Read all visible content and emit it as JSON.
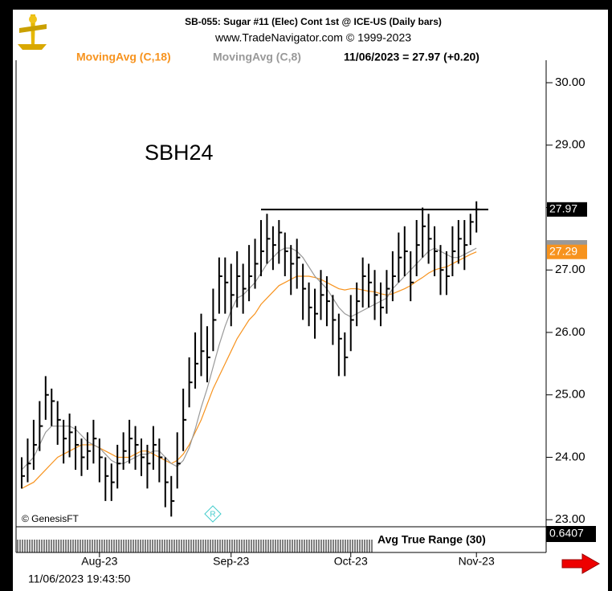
{
  "chart_data": {
    "type": "hlc",
    "title": "SB-055:  Sugar #11 (Elec) Cont 1st @ ICE-US  (Daily bars)",
    "subtitle": "www.TradeNavigator.com © 1999-2023",
    "quote": "11/06/2023 = 27.97 (+0.20)",
    "symbol": "SBH24",
    "credit": "© GenesisFT",
    "badge": "R",
    "timestamp": "11/06/2023 19:43:50",
    "indicator": {
      "name": "Avg True Range (30)",
      "value": "0.6407"
    },
    "bar_color": "#000000",
    "bars": {
      "high": [
        24.0,
        24.3,
        24.6,
        24.9,
        25.3,
        25.1,
        24.9,
        24.6,
        24.7,
        24.5,
        24.3,
        24.4,
        24.6,
        24.3,
        24.0,
        23.9,
        24.2,
        24.4,
        24.6,
        24.5,
        24.3,
        24.2,
        24.5,
        24.3,
        24.0,
        23.7,
        24.4,
        25.1,
        25.6,
        26.0,
        26.3,
        26.1,
        26.7,
        27.2,
        27.2,
        27.1,
        27.3,
        27.1,
        27.4,
        27.5,
        27.8,
        27.9,
        27.7,
        27.8,
        27.6,
        27.4,
        27.5,
        27.1,
        26.8,
        26.7,
        27.0,
        26.9,
        26.6,
        26.3,
        26.0,
        26.6,
        26.8,
        27.2,
        27.1,
        27.0,
        26.8,
        27.0,
        27.3,
        27.6,
        27.7,
        27.3,
        27.8,
        28.0,
        27.9,
        27.7,
        27.4,
        27.3,
        27.7,
        27.8,
        27.8,
        27.9,
        28.1
      ],
      "low": [
        23.5,
        23.6,
        23.8,
        24.1,
        24.6,
        24.5,
        24.2,
        23.9,
        24.0,
        23.8,
        23.7,
        23.8,
        23.9,
        23.6,
        23.3,
        23.3,
        23.5,
        23.8,
        23.9,
        23.8,
        23.7,
        23.5,
        23.8,
        23.6,
        23.2,
        23.05,
        23.5,
        24.1,
        24.8,
        25.1,
        25.3,
        25.2,
        25.7,
        26.3,
        26.3,
        26.1,
        26.4,
        26.3,
        26.5,
        26.7,
        26.9,
        27.1,
        27.0,
        27.1,
        26.9,
        26.6,
        26.7,
        26.2,
        26.1,
        25.9,
        26.2,
        26.1,
        25.8,
        25.3,
        25.3,
        25.7,
        26.1,
        26.4,
        26.4,
        26.2,
        26.1,
        26.3,
        26.5,
        26.8,
        26.9,
        26.5,
        26.9,
        27.2,
        27.1,
        26.9,
        26.6,
        26.6,
        26.9,
        27.1,
        27.0,
        27.4,
        27.6
      ],
      "close": [
        23.7,
        23.9,
        24.2,
        24.5,
        25.0,
        24.9,
        24.6,
        24.3,
        24.4,
        24.2,
        24.0,
        24.1,
        24.3,
        24.0,
        23.7,
        23.6,
        23.9,
        24.1,
        24.3,
        24.2,
        24.0,
        23.9,
        24.2,
        24.0,
        23.6,
        23.3,
        23.9,
        24.6,
        25.2,
        25.5,
        25.7,
        25.6,
        26.2,
        26.9,
        26.8,
        26.6,
        26.9,
        26.7,
        26.9,
        27.1,
        27.3,
        27.5,
        27.4,
        27.6,
        27.3,
        27.1,
        27.2,
        26.7,
        26.4,
        26.3,
        26.6,
        26.5,
        26.2,
        25.9,
        25.6,
        26.2,
        26.5,
        26.9,
        26.8,
        26.6,
        26.4,
        26.7,
        26.9,
        27.2,
        27.3,
        26.8,
        27.4,
        27.7,
        27.5,
        27.3,
        27.0,
        26.9,
        27.3,
        27.5,
        27.4,
        27.77,
        27.97
      ]
    },
    "series": [
      {
        "name": "MovingAvg (C,18)",
        "color": "#f7931e",
        "values": [
          23.5,
          23.55,
          23.6,
          23.7,
          23.8,
          23.9,
          24.0,
          24.05,
          24.1,
          24.15,
          24.2,
          24.2,
          24.2,
          24.15,
          24.1,
          24.05,
          24.0,
          24.0,
          24.0,
          24.05,
          24.1,
          24.1,
          24.05,
          24.0,
          23.95,
          23.9,
          23.95,
          24.05,
          24.2,
          24.4,
          24.6,
          24.85,
          25.1,
          25.3,
          25.5,
          25.7,
          25.9,
          26.05,
          26.2,
          26.3,
          26.45,
          26.55,
          26.65,
          26.75,
          26.8,
          26.85,
          26.9,
          26.9,
          26.9,
          26.88,
          26.85,
          26.8,
          26.75,
          26.7,
          26.68,
          26.7,
          26.7,
          26.68,
          26.66,
          26.65,
          26.62,
          26.6,
          26.62,
          26.66,
          26.7,
          26.75,
          26.82,
          26.88,
          26.95,
          27.0,
          27.03,
          27.05,
          27.1,
          27.15,
          27.2,
          27.25,
          27.29
        ]
      },
      {
        "name": "MovingAvg (C,8)",
        "color": "#999999",
        "values": [
          23.8,
          23.9,
          24.0,
          24.2,
          24.4,
          24.5,
          24.5,
          24.5,
          24.5,
          24.45,
          24.35,
          24.25,
          24.2,
          24.15,
          24.05,
          23.95,
          23.9,
          23.9,
          23.95,
          24.0,
          24.05,
          24.05,
          24.1,
          24.1,
          24.0,
          23.9,
          23.85,
          23.95,
          24.15,
          24.45,
          24.8,
          25.1,
          25.45,
          25.8,
          26.1,
          26.35,
          26.55,
          26.6,
          26.7,
          26.8,
          26.95,
          27.1,
          27.2,
          27.3,
          27.35,
          27.35,
          27.3,
          27.2,
          27.05,
          26.9,
          26.8,
          26.7,
          26.55,
          26.4,
          26.3,
          26.25,
          26.3,
          26.35,
          26.4,
          26.45,
          26.5,
          26.55,
          26.7,
          26.8,
          26.9,
          27.0,
          27.1,
          27.2,
          27.3,
          27.35,
          27.3,
          27.25,
          27.2,
          27.2,
          27.25,
          27.3,
          27.35
        ]
      }
    ],
    "resistance": 27.97,
    "ylim": [
      22.9,
      30.36
    ],
    "yticks": [
      {
        "value": 23,
        "label": "23.00"
      },
      {
        "value": 24,
        "label": "24.00"
      },
      {
        "value": 25,
        "label": "25.00"
      },
      {
        "value": 26,
        "label": "26.00"
      },
      {
        "value": 27,
        "label": "27.00"
      },
      {
        "value": 28,
        "label": "28.00"
      },
      {
        "value": 29,
        "label": "29.00"
      },
      {
        "value": 30,
        "label": "30.00"
      }
    ],
    "xticks": [
      {
        "value": 13,
        "label": "Aug-23"
      },
      {
        "value": 35,
        "label": "Sep-23"
      },
      {
        "value": 55,
        "label": "Oct-23"
      },
      {
        "value": 76,
        "label": "Nov-23"
      }
    ]
  }
}
